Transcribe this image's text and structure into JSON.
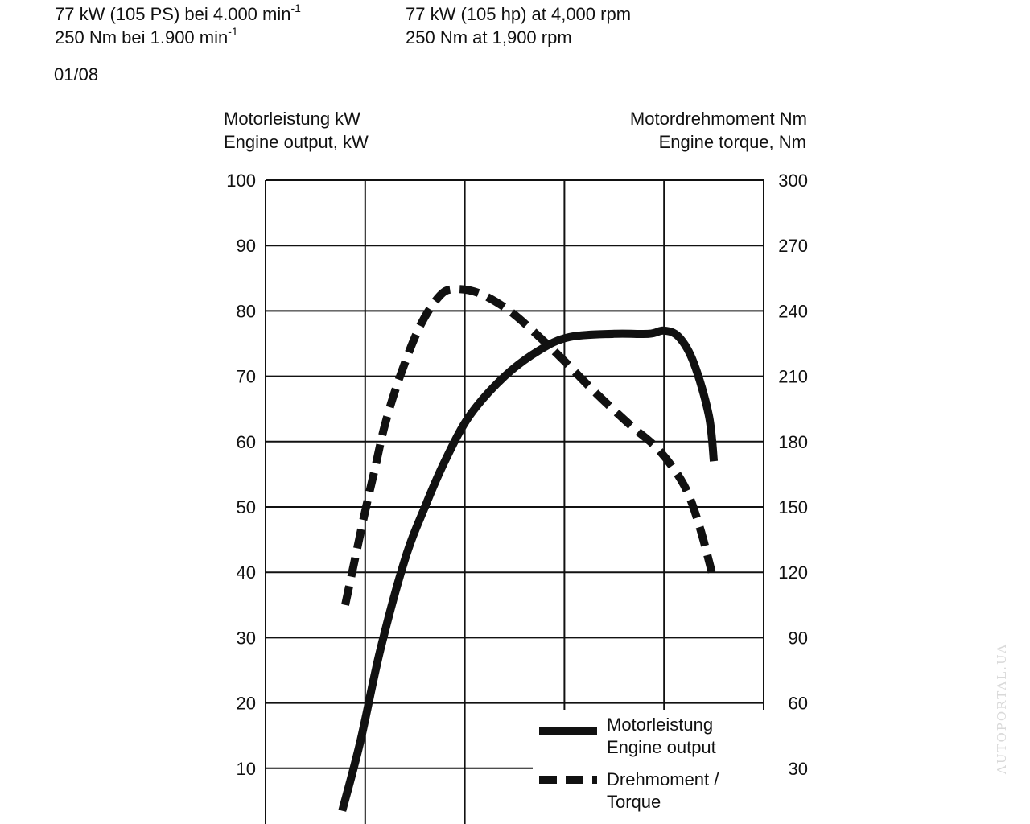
{
  "specs": {
    "de_power_text": "77 kW (105 PS) bei 4.000 min",
    "de_power_sup": "-1",
    "de_torque_text": "250 Nm bei 1.900 min",
    "de_torque_sup": "-1",
    "en_power": "77 kW (105 hp) at 4,000 rpm",
    "en_torque": "250 Nm at 1,900 rpm",
    "date": "01/08"
  },
  "watermark": "AUTOPORTAL.UA",
  "chart_data": {
    "type": "line",
    "left_axis": {
      "label_de": "Motorleistung kW",
      "label_en": "Engine output, kW",
      "ylim": [
        0,
        100
      ],
      "ticks": [
        "10",
        "20",
        "30",
        "40",
        "50",
        "60",
        "70",
        "80",
        "90",
        "100"
      ]
    },
    "right_axis": {
      "label_de": "Motordrehmoment Nm",
      "label_en": "Engine torque, Nm",
      "ylim": [
        0,
        300
      ],
      "ticks": [
        "30",
        "60",
        "90",
        "120",
        "150",
        "180",
        "210",
        "240",
        "270",
        "300"
      ]
    },
    "x_axis": {
      "xlim": [
        0,
        5
      ],
      "gridlines": [
        1,
        2,
        3,
        4
      ],
      "tick_labels": []
    },
    "grid": true,
    "legend": {
      "placement": "bottom-right",
      "entries": [
        {
          "line1": "Motorleistung",
          "line2": "Engine output",
          "style": "solid"
        },
        {
          "line1": "Drehmoment /",
          "line2": "Torque",
          "style": "dashed"
        }
      ]
    },
    "series": [
      {
        "name": "Motorleistung / Engine output",
        "axis": "left",
        "style": "solid",
        "points": [
          [
            0.77,
            3.5
          ],
          [
            0.95,
            14
          ],
          [
            1.15,
            28
          ],
          [
            1.4,
            42
          ],
          [
            1.6,
            50
          ],
          [
            1.8,
            57
          ],
          [
            2.05,
            64
          ],
          [
            2.4,
            70
          ],
          [
            2.75,
            74
          ],
          [
            3.05,
            76
          ],
          [
            3.5,
            76.5
          ],
          [
            3.85,
            76.5
          ],
          [
            4.0,
            77
          ],
          [
            4.15,
            76
          ],
          [
            4.3,
            72
          ],
          [
            4.45,
            64
          ],
          [
            4.5,
            57
          ]
        ]
      },
      {
        "name": "Drehmoment / Torque",
        "axis": "right",
        "style": "dashed",
        "points": [
          [
            0.8,
            105
          ],
          [
            1.0,
            148
          ],
          [
            1.1,
            168
          ],
          [
            1.2,
            188
          ],
          [
            1.35,
            210
          ],
          [
            1.55,
            233
          ],
          [
            1.75,
            247
          ],
          [
            1.9,
            250
          ],
          [
            2.15,
            248
          ],
          [
            2.45,
            240
          ],
          [
            2.75,
            228
          ],
          [
            3.0,
            217
          ],
          [
            3.3,
            203
          ],
          [
            3.65,
            188
          ],
          [
            3.95,
            176
          ],
          [
            4.2,
            160
          ],
          [
            4.35,
            142
          ],
          [
            4.48,
            120
          ]
        ]
      }
    ]
  }
}
